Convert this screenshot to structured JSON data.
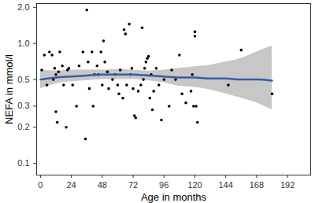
{
  "chart_data": {
    "type": "scatter",
    "x_label": "Age in months",
    "y_label": "NEFA in mmol/l",
    "log": "y",
    "grid": false,
    "xlim": [
      -3,
      210
    ],
    "xticks": [
      0,
      24,
      48,
      72,
      96,
      120,
      144,
      168,
      192
    ],
    "ylim": [
      0.08,
      2.15
    ],
    "yticks": [
      0.1,
      0.2,
      0.3,
      0.5,
      {
        "value": 1,
        "label": "1.0"
      },
      {
        "value": 2,
        "label": "2.0"
      }
    ],
    "series": [
      {
        "type": "area",
        "color": "#bdbdbd",
        "x": [
          0,
          12,
          24,
          36,
          48,
          60,
          72,
          84,
          96,
          108,
          120,
          132,
          144,
          156,
          168,
          180
        ],
        "lower": [
          0.42,
          0.46,
          0.48,
          0.49,
          0.5,
          0.5,
          0.5,
          0.49,
          0.47,
          0.44,
          0.43,
          0.41,
          0.38,
          0.35,
          0.32,
          0.28
        ],
        "upper": [
          0.6,
          0.59,
          0.6,
          0.6,
          0.6,
          0.61,
          0.6,
          0.59,
          0.6,
          0.62,
          0.64,
          0.66,
          0.7,
          0.75,
          0.85,
          0.95
        ]
      },
      {
        "type": "scatter",
        "color": "#000000",
        "marker": "circle",
        "x": [
          1,
          3,
          5,
          7,
          9,
          10,
          11,
          12,
          12,
          13,
          14,
          15,
          17,
          18,
          20,
          21,
          22,
          25,
          28,
          30,
          33,
          35,
          36,
          37,
          38,
          40,
          41,
          42,
          44,
          45,
          47,
          48,
          49,
          50,
          52,
          53,
          56,
          58,
          60,
          61,
          62,
          64,
          65,
          66,
          67,
          69,
          70,
          71,
          72,
          73,
          74,
          76,
          78,
          79,
          80,
          81,
          82,
          83,
          84,
          85,
          86,
          87,
          88,
          90,
          92,
          94,
          96,
          100,
          102,
          105,
          108,
          110,
          113,
          117,
          118,
          120,
          120,
          119,
          121,
          122,
          146,
          156,
          180
        ],
        "values": [
          0.6,
          0.8,
          0.45,
          0.85,
          0.8,
          0.5,
          0.62,
          0.27,
          0.55,
          0.22,
          0.58,
          0.85,
          0.65,
          0.45,
          0.2,
          0.6,
          0.62,
          0.45,
          0.3,
          0.65,
          0.85,
          0.16,
          1.9,
          0.7,
          0.42,
          0.85,
          0.3,
          0.55,
          0.65,
          0.55,
          0.85,
          0.45,
          1.05,
          0.7,
          0.58,
          0.42,
          0.5,
          0.55,
          0.45,
          0.38,
          0.6,
          0.35,
          1.3,
          1.2,
          0.45,
          1.45,
          0.55,
          0.62,
          0.42,
          0.25,
          0.24,
          0.4,
          0.45,
          1.35,
          0.5,
          0.62,
          0.7,
          0.75,
          0.78,
          0.35,
          0.55,
          0.28,
          0.4,
          0.62,
          0.45,
          0.23,
          0.5,
          0.3,
          0.6,
          0.5,
          0.8,
          0.38,
          0.32,
          0.4,
          0.55,
          1.25,
          1.15,
          0.3,
          0.3,
          0.22,
          0.45,
          0.88,
          0.38
        ]
      },
      {
        "type": "line",
        "color": "#3a5ca8",
        "line_style": "solid",
        "x": [
          0,
          12,
          24,
          36,
          48,
          60,
          72,
          84,
          96,
          108,
          120,
          132,
          144,
          156,
          168,
          180
        ],
        "values": [
          0.5,
          0.52,
          0.53,
          0.54,
          0.55,
          0.55,
          0.55,
          0.54,
          0.53,
          0.52,
          0.52,
          0.51,
          0.51,
          0.5,
          0.5,
          0.49
        ]
      }
    ]
  }
}
